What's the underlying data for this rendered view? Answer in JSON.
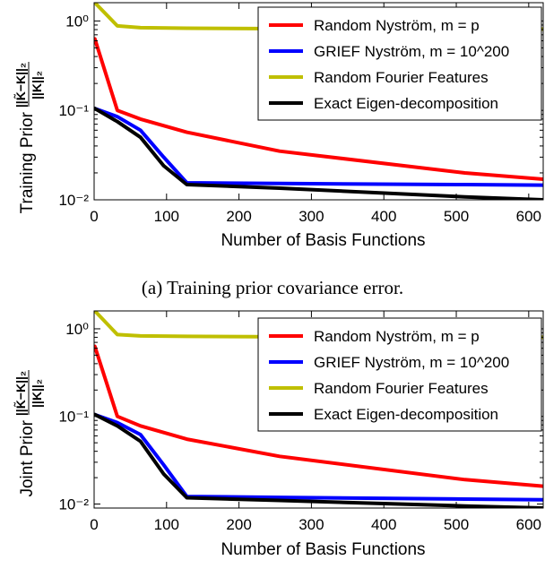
{
  "chart_data": [
    {
      "type": "line",
      "title": "",
      "xlabel": "Number of Basis Functions",
      "ylabel_text": "Training Prior",
      "ylabel_numerator": "||K̃−K||₂",
      "ylabel_denominator": "||K||₂",
      "caption": "(a) Training prior covariance error.",
      "xlim": [
        0,
        620
      ],
      "ylim": [
        0.01,
        1.6
      ],
      "yscale": "log",
      "x_ticks": [
        "0",
        "100",
        "200",
        "300",
        "400",
        "500",
        "600"
      ],
      "y_ticks": [
        "10⁰",
        "10⁻¹",
        "10⁻²"
      ],
      "legend_position": "top-right",
      "series": [
        {
          "name": "Random Nyström, m = p",
          "color": "#ff0000",
          "x": [
            1,
            32,
            64,
            128,
            256,
            512,
            620
          ],
          "y": [
            0.63,
            0.1,
            0.08,
            0.057,
            0.035,
            0.02,
            0.017
          ]
        },
        {
          "name": "GRIEF Nyström, m = 10^200",
          "color": "#0000ff",
          "x": [
            1,
            32,
            64,
            96,
            128,
            256,
            512,
            620
          ],
          "y": [
            0.105,
            0.085,
            0.06,
            0.03,
            0.0155,
            0.0152,
            0.0148,
            0.0146
          ]
        },
        {
          "name": "Random Fourier Features",
          "color": "#bfbf00",
          "x": [
            1,
            32,
            64,
            128,
            256,
            512,
            620
          ],
          "y": [
            1.6,
            0.88,
            0.84,
            0.83,
            0.82,
            0.81,
            0.81
          ]
        },
        {
          "name": "Exact Eigen-decomposition",
          "color": "#000000",
          "x": [
            1,
            32,
            64,
            96,
            128,
            256,
            512,
            620
          ],
          "y": [
            0.105,
            0.075,
            0.05,
            0.024,
            0.0148,
            0.0135,
            0.0108,
            0.01
          ]
        }
      ]
    },
    {
      "type": "line",
      "title": "",
      "xlabel": "Number of Basis Functions",
      "ylabel_text": "Joint Prior",
      "ylabel_numerator": "||K̃−K||₂",
      "ylabel_denominator": "||K||₂",
      "caption": "",
      "xlim": [
        0,
        620
      ],
      "ylim": [
        0.009,
        1.6
      ],
      "yscale": "log",
      "x_ticks": [
        "0",
        "100",
        "200",
        "300",
        "400",
        "500",
        "600"
      ],
      "y_ticks": [
        "10⁰",
        "10⁻¹",
        "10⁻²"
      ],
      "legend_position": "top-right",
      "series": [
        {
          "name": "Random Nyström, m = p",
          "color": "#ff0000",
          "x": [
            1,
            32,
            64,
            128,
            256,
            512,
            620
          ],
          "y": [
            0.63,
            0.1,
            0.078,
            0.055,
            0.035,
            0.019,
            0.016
          ]
        },
        {
          "name": "GRIEF Nyström, m = 10^200",
          "color": "#0000ff",
          "x": [
            1,
            32,
            64,
            96,
            128,
            256,
            512,
            620
          ],
          "y": [
            0.105,
            0.085,
            0.062,
            0.028,
            0.0122,
            0.0119,
            0.0114,
            0.0112
          ]
        },
        {
          "name": "Random Fourier Features",
          "color": "#bfbf00",
          "x": [
            1,
            32,
            64,
            128,
            256,
            512,
            620
          ],
          "y": [
            1.6,
            0.86,
            0.83,
            0.82,
            0.81,
            0.8,
            0.8
          ]
        },
        {
          "name": "Exact Eigen-decomposition",
          "color": "#000000",
          "x": [
            1,
            32,
            64,
            96,
            128,
            256,
            512,
            620
          ],
          "y": [
            0.105,
            0.078,
            0.052,
            0.022,
            0.0118,
            0.011,
            0.0095,
            0.009
          ]
        }
      ]
    }
  ]
}
